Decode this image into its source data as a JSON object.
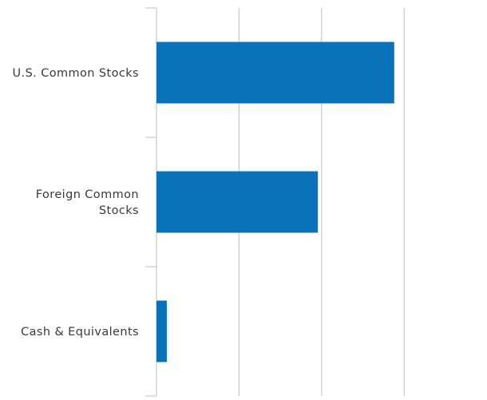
{
  "chart_data": {
    "type": "bar",
    "orientation": "horizontal",
    "title": "",
    "xlabel": "",
    "ylabel": "",
    "categories": [
      "U.S. Common Stocks",
      "Foreign Common Stocks",
      "Cash & Equivalents"
    ],
    "category_lines": [
      [
        "U.S. Common Stocks"
      ],
      [
        "Foreign Common",
        "Stocks"
      ],
      [
        "Cash & Equivalents"
      ]
    ],
    "values": [
      57.6,
      39.1,
      2.5
    ],
    "xlim": [
      0,
      80
    ],
    "gridlines_at": [
      20,
      40,
      60
    ],
    "grid": true,
    "tick_labels_shown": false,
    "legend": "none",
    "bar_color": "#0a72b8",
    "grid_color": "#c4c8cc",
    "axis_color": "#c4c8cc"
  }
}
